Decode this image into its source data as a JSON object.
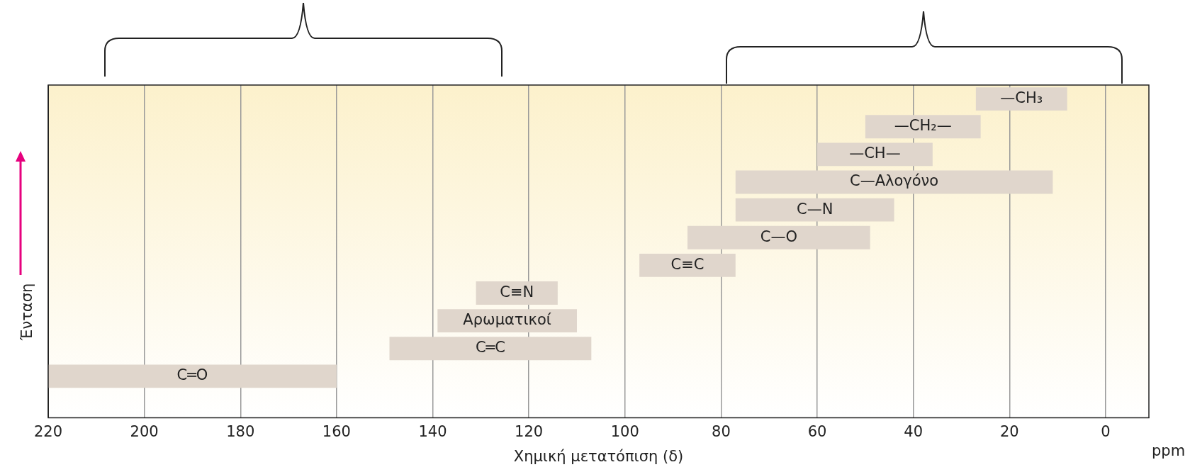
{
  "chart_data": {
    "type": "bar",
    "orientation": "horizontal",
    "xlabel": "Χημική μετατόπιση (δ)",
    "ylabel": "Ένταση",
    "categories": [
      "—CH₃",
      "—CH₂—",
      "—CH—",
      "C—Αλογόνο",
      "C—N",
      "C—O",
      "C≡C",
      "C≡N",
      "Αρωματικοί",
      "C═C",
      "C═O",
      null
    ],
    "base": [
      8,
      26,
      36,
      11,
      44,
      49,
      77,
      114,
      110,
      107,
      160,
      null
    ],
    "values": [
      19,
      24,
      24,
      66,
      33,
      38,
      20,
      17,
      29,
      42,
      60,
      null
    ],
    "color": "#e0d6cc",
    "xlim": [
      220,
      -9
    ],
    "xticks": [
      220,
      200,
      180,
      160,
      140,
      120,
      100,
      80,
      60,
      40,
      20,
      0
    ],
    "grid": "x",
    "tick_labels": "x",
    "annotations": [
      "ppm"
    ]
  }
}
